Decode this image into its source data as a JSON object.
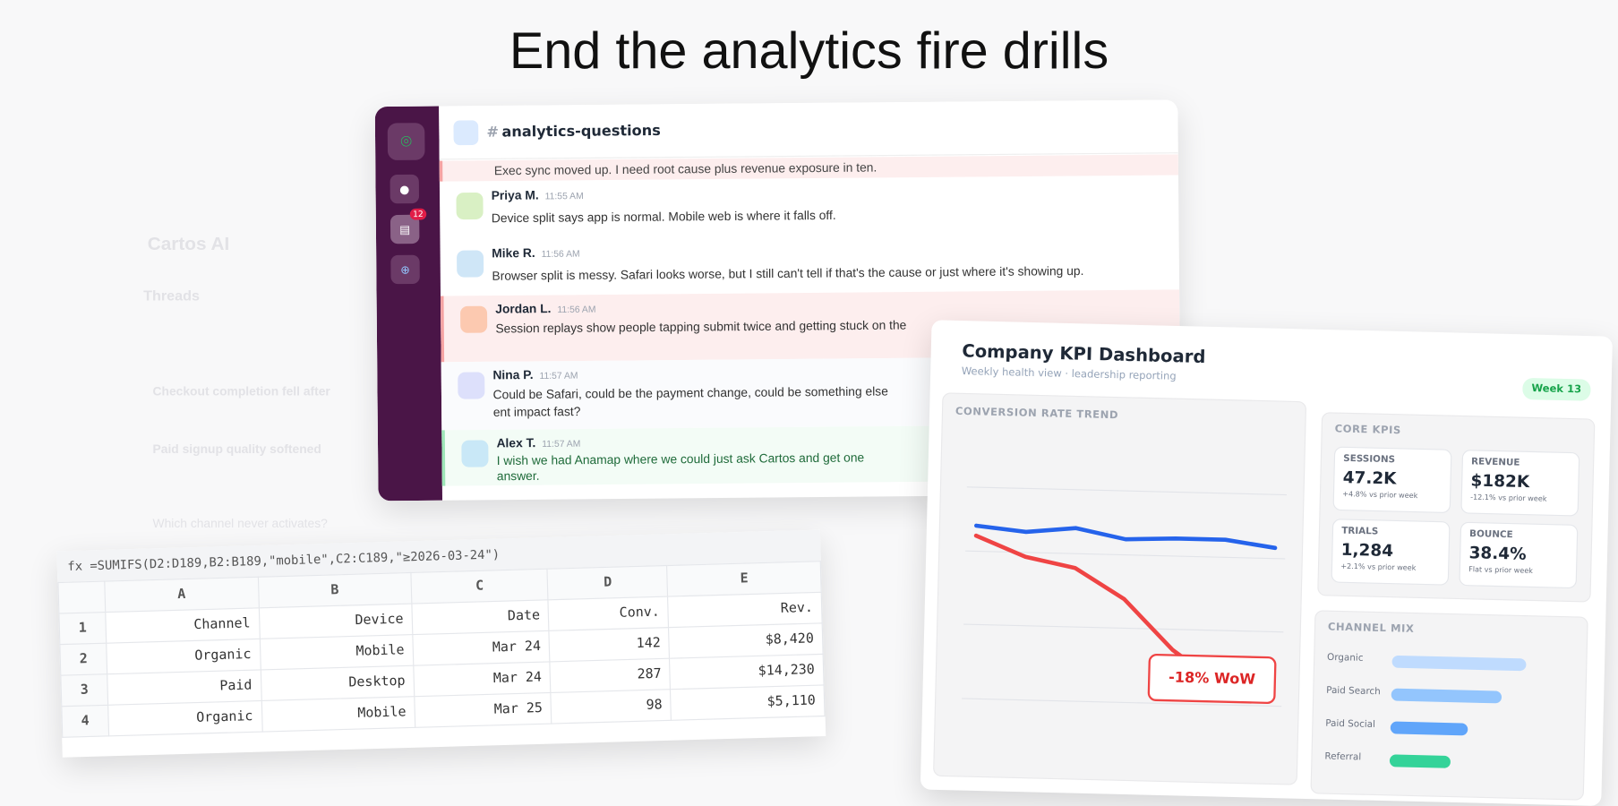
{
  "headline": "End the analytics fire drills",
  "background": {
    "app": "Cartos AI",
    "threads": "Threads",
    "items": [
      "Checkout completion fell after",
      "Paid signup quality softened",
      "Which channel never activates?"
    ]
  },
  "chat": {
    "channel": "analytics-questions",
    "hash": "#",
    "unread_badge": "12",
    "sidebar_icons": [
      "map-pin-icon",
      "contacts-icon",
      "messages-icon",
      "add-icon"
    ],
    "messages": [
      {
        "name": "",
        "time": "",
        "text": "Exec sync moved up. I need root cause plus revenue exposure in ten.",
        "tone": "alert"
      },
      {
        "name": "Priya M.",
        "time": "11:55 AM",
        "text": "Device split says app is normal. Mobile web is where it falls off.",
        "tone": "normal",
        "avatar": "#d9f0c4"
      },
      {
        "name": "Mike R.",
        "time": "11:56 AM",
        "text": "Browser split is messy. Safari looks worse, but I still can't tell if that's the cause or just where it's showing up.",
        "tone": "normal",
        "avatar": "#cfe6f7"
      },
      {
        "name": "Jordan L.",
        "time": "11:56 AM",
        "text": "Session replays show people tapping submit twice and getting stuck on the",
        "tone": "alert",
        "avatar": "#fcc9b0"
      },
      {
        "name": "Nina P.",
        "time": "11:57 AM",
        "text": "Could be Safari, could be the payment change, could be something else ent impact fast?",
        "tone": "normal",
        "avatar": "#dde0fb"
      },
      {
        "name": "Alex T.",
        "time": "11:57 AM",
        "text": "I wish we had Anamap where we could just ask Cartos and get one answer.",
        "tone": "success",
        "avatar": "#c9e8f7"
      }
    ]
  },
  "dashboard": {
    "title": "Company KPI Dashboard",
    "subtitle": "Weekly health view · leadership reporting",
    "week_badge": "Week 13",
    "trend_caption": "CONVERSION RATE TREND",
    "callout": "-18% WoW",
    "kpi_caption": "CORE KPIS",
    "kpis": [
      {
        "label": "SESSIONS",
        "value": "47.2K",
        "delta": "+4.8% vs prior week"
      },
      {
        "label": "REVENUE",
        "value": "$182K",
        "delta": "-12.1% vs prior week"
      },
      {
        "label": "TRIALS",
        "value": "1,284",
        "delta": "+2.1% vs prior week"
      },
      {
        "label": "BOUNCE",
        "value": "38.4%",
        "delta": "Flat vs prior week"
      }
    ],
    "mix_caption": "CHANNEL MIX",
    "mix": [
      {
        "label": "Organic",
        "share": 1.0,
        "color": "#bfdbfe"
      },
      {
        "label": "Paid Search",
        "share": 0.82,
        "color": "#93c5fd"
      },
      {
        "label": "Paid Social",
        "share": 0.58,
        "color": "#60a5fa"
      },
      {
        "label": "Referral",
        "share": 0.45,
        "color": "#34d399"
      }
    ]
  },
  "chart_data": {
    "type": "line",
    "title": "CONVERSION RATE TREND",
    "x": [
      1,
      2,
      3,
      4,
      5,
      6,
      7
    ],
    "series": [
      {
        "color": "#2563eb",
        "values": [
          3.6,
          3.55,
          3.6,
          3.5,
          3.52,
          3.52,
          3.45
        ]
      },
      {
        "color": "#ef4444",
        "values": [
          3.5,
          3.3,
          3.2,
          2.9,
          2.4,
          2.05,
          2.2
        ]
      }
    ],
    "ylim": [
      1.5,
      4.4
    ],
    "grid": true,
    "annotation": "-18% WoW"
  },
  "sheet": {
    "formula": "fx =SUMIFS(D2:D189,B2:B189,\"mobile\",C2:C189,\"≥2026-03-24\")",
    "columns": [
      "A",
      "B",
      "C",
      "D",
      "E"
    ],
    "rows": [
      [
        "1",
        "Channel",
        "Device",
        "Date",
        "Conv.",
        "Rev."
      ],
      [
        "2",
        "Organic",
        "Mobile",
        "Mar 24",
        "142",
        "$8,420"
      ],
      [
        "3",
        "Paid",
        "Desktop",
        "Mar 24",
        "287",
        "$14,230"
      ],
      [
        "4",
        "Organic",
        "Mobile",
        "Mar 25",
        "98",
        "$5,110"
      ]
    ]
  }
}
